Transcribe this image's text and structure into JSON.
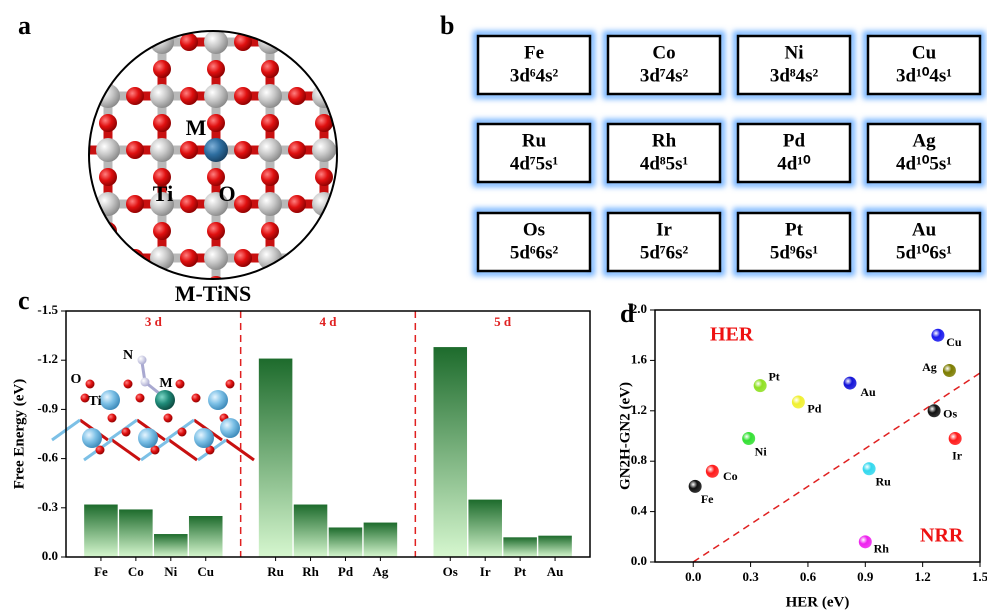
{
  "panel_labels": [
    "a",
    "b",
    "c",
    "d"
  ],
  "structure": {
    "caption": "M-TiNS",
    "labels": [
      "M",
      "Ti",
      "O"
    ]
  },
  "element_table": {
    "rows": [
      [
        {
          "symbol": "Fe",
          "config": "3d⁶4s²"
        },
        {
          "symbol": "Co",
          "config": "3d⁷4s²"
        },
        {
          "symbol": "Ni",
          "config": "3d⁸4s²"
        },
        {
          "symbol": "Cu",
          "config": "3d¹⁰4s¹"
        }
      ],
      [
        {
          "symbol": "Ru",
          "config": "4d⁷5s¹"
        },
        {
          "symbol": "Rh",
          "config": "4d⁸5s¹"
        },
        {
          "symbol": "Pd",
          "config": "4d¹⁰"
        },
        {
          "symbol": "Ag",
          "config": "4d¹⁰5s¹"
        }
      ],
      [
        {
          "symbol": "Os",
          "config": "5d⁶6s²"
        },
        {
          "symbol": "Ir",
          "config": "5d⁷6s²"
        },
        {
          "symbol": "Pt",
          "config": "5d⁹6s¹"
        },
        {
          "symbol": "Au",
          "config": "5d¹⁰6s¹"
        }
      ]
    ]
  },
  "chart_data": [
    {
      "type": "bar",
      "ylabel": "Free Energy (eV)",
      "groups": [
        "3 d",
        "4 d",
        "5 d"
      ],
      "categories": [
        "Fe",
        "Co",
        "Ni",
        "Cu",
        "Ru",
        "Rh",
        "Pd",
        "Ag",
        "Os",
        "Ir",
        "Pt",
        "Au"
      ],
      "values": [
        -0.32,
        -0.29,
        -0.14,
        -0.25,
        -1.21,
        -0.32,
        -0.18,
        -0.21,
        -1.28,
        -0.35,
        -0.12,
        -0.13
      ],
      "colors": [
        "#1d6b2c",
        "#d6f7cf"
      ],
      "ylim": [
        0,
        -1.5
      ],
      "yticks": [
        -1.5,
        -1.2,
        -0.9,
        -0.6,
        -0.3,
        {
          "value": 0,
          "label": "0.0"
        }
      ],
      "annotations": [
        "N",
        "O",
        "M",
        "Ti"
      ]
    },
    {
      "type": "scatter",
      "xlabel": "HER (eV)",
      "ylabel": "GN2H-GN2 (eV)",
      "labels": [
        "Fe",
        "Co",
        "Ni",
        "Pt",
        "Pd",
        "Au",
        "Ru",
        "Rh",
        "Cu",
        "Ag",
        "Os",
        "Ir"
      ],
      "x": [
        0.01,
        0.1,
        0.29,
        0.35,
        0.55,
        0.82,
        0.92,
        0.9,
        1.28,
        1.34,
        1.26,
        1.37
      ],
      "values": [
        0.6,
        0.72,
        0.98,
        1.4,
        1.27,
        1.42,
        0.74,
        0.16,
        1.8,
        1.52,
        1.2,
        0.98
      ],
      "colors": [
        "#111111",
        "#ff1a1a",
        "#33e033",
        "#8fe022",
        "#f0f030",
        "#1414d8",
        "#33d8ee",
        "#ee22ee",
        "#1a1aee",
        "#7c7c00",
        "#111111",
        "#ff1a1a"
      ],
      "xlim": [
        -0.2,
        1.5
      ],
      "ylim": [
        0,
        2
      ],
      "xticks": [
        {
          "value": 0,
          "label": "0.0"
        },
        0.3,
        0.6,
        0.9,
        1.2,
        1.5
      ],
      "yticks": [
        {
          "value": 0,
          "label": "0.0"
        },
        0.4,
        0.8,
        1.2,
        1.6,
        {
          "value": 2,
          "label": "2.0"
        }
      ],
      "annotations": [
        "HER",
        "NRR"
      ]
    }
  ]
}
